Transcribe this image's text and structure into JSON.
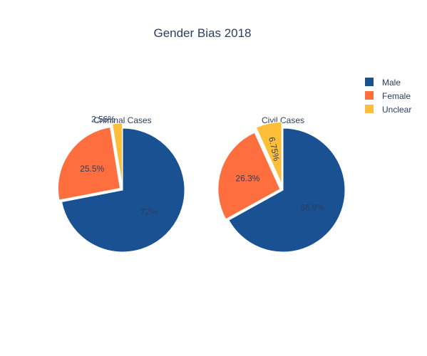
{
  "colors": {
    "male": "#1a5192",
    "female": "#fe6e3f",
    "unclear": "#fdbf3a",
    "text": "#2a3f5f"
  },
  "chart_data": {
    "type": "pie",
    "title": "Gender Bias 2018",
    "legend_position": "top-right",
    "legend": [
      "Male",
      "Female",
      "Unclear"
    ],
    "pies": [
      {
        "name": "Criminal Cases",
        "slices": [
          {
            "label": "Male",
            "value": 72,
            "text": "72%"
          },
          {
            "label": "Female",
            "value": 25.5,
            "text": "25.5%"
          },
          {
            "label": "Unclear",
            "value": 2.56,
            "text": "2.56%"
          }
        ]
      },
      {
        "name": "Civil Cases",
        "slices": [
          {
            "label": "Male",
            "value": 66.9,
            "text": "66.9%"
          },
          {
            "label": "Female",
            "value": 26.3,
            "text": "26.3%"
          },
          {
            "label": "Unclear",
            "value": 6.75,
            "text": "6.75%"
          }
        ]
      }
    ]
  }
}
